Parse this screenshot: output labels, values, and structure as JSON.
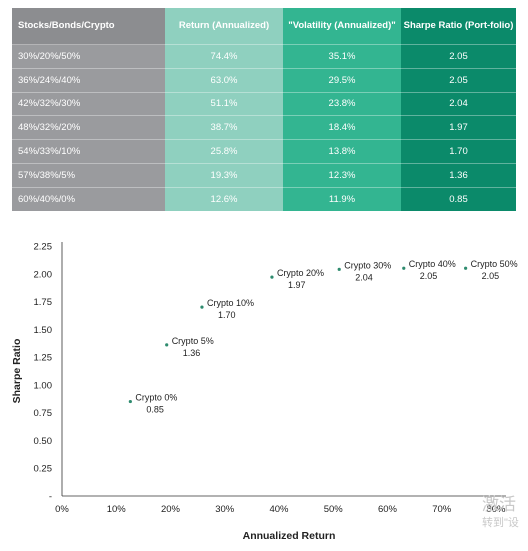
{
  "table": {
    "headers": [
      "Stocks/Bonds/Crypto",
      "Return (Annualized)",
      "\"Volatility (Annualized)\"",
      "Sharpe Ratio (Port-folio)"
    ],
    "rows": [
      [
        "30%/20%/50%",
        "74.4%",
        "35.1%",
        "2.05"
      ],
      [
        "36%/24%/40%",
        "63.0%",
        "29.5%",
        "2.05"
      ],
      [
        "42%/32%/30%",
        "51.1%",
        "23.8%",
        "2.04"
      ],
      [
        "48%/32%/20%",
        "38.7%",
        "18.4%",
        "1.97"
      ],
      [
        "54%/33%/10%",
        "25.8%",
        "13.8%",
        "1.70"
      ],
      [
        "57%/38%/5%",
        "19.3%",
        "12.3%",
        "1.36"
      ],
      [
        "60%/40%/0%",
        "12.6%",
        "11.9%",
        "0.85"
      ]
    ],
    "colors": {
      "col0_header": "#8c8d90",
      "col0_row": "#9a9b9e",
      "col1_header": "#8fd0bf",
      "col1_row": "#8fd0bf",
      "col2_header": "#33b591",
      "col2_row": "#33b591",
      "col3_header": "#0b8a6a",
      "col3_row": "#0b8a6a"
    }
  },
  "chart_data": {
    "type": "scatter",
    "xlabel": "Annualized Return",
    "ylabel": "Sharpe Ratio",
    "xlim": [
      0,
      80
    ],
    "ylim": [
      0,
      2.25
    ],
    "x_ticks": [
      "0%",
      "10%",
      "20%",
      "30%",
      "40%",
      "50%",
      "60%",
      "70%",
      "80%"
    ],
    "y_ticks": [
      "-",
      "0.25",
      "0.50",
      "0.75",
      "1.00",
      "1.25",
      "1.50",
      "1.75",
      "2.00",
      "2.25"
    ],
    "points": [
      {
        "label": "Crypto 0%",
        "value_label": "0.85",
        "x": 12.6,
        "y": 0.85
      },
      {
        "label": "Crypto 5%",
        "value_label": "1.36",
        "x": 19.3,
        "y": 1.36
      },
      {
        "label": "Crypto 10%",
        "value_label": "1.70",
        "x": 25.8,
        "y": 1.7
      },
      {
        "label": "Crypto 20%",
        "value_label": "1.97",
        "x": 38.7,
        "y": 1.97
      },
      {
        "label": "Crypto 30%",
        "value_label": "2.04",
        "x": 51.1,
        "y": 2.04
      },
      {
        "label": "Crypto 40%",
        "value_label": "2.05",
        "x": 63.0,
        "y": 2.05
      },
      {
        "label": "Crypto 50%",
        "value_label": "2.05",
        "x": 74.4,
        "y": 2.05
      }
    ],
    "point_color": "#2e8b6e",
    "axis_color": "#333333",
    "grid": false
  },
  "watermark": {
    "line1": "激活",
    "line2": "转到\"设"
  }
}
